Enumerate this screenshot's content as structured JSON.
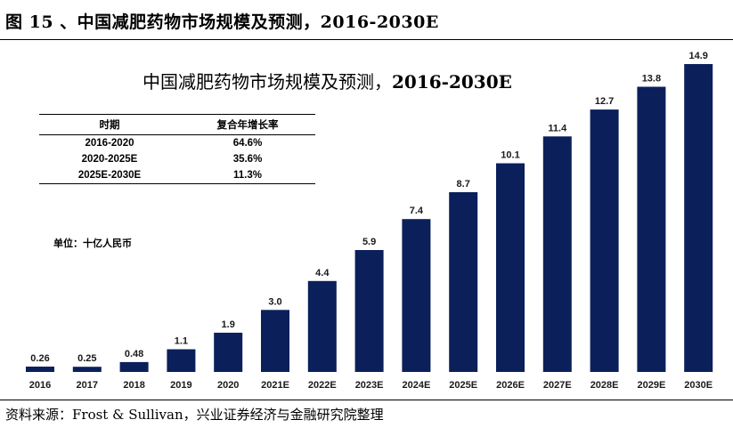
{
  "heading": "图 15 、中国减肥药物市场规模及预测，2016-2030E",
  "chart_title": {
    "prefix": "中国减肥药物市场规模及预测，",
    "years": "2016-2030E"
  },
  "cagr_table": {
    "headers": [
      "时期",
      "复合年增长率"
    ],
    "rows": [
      [
        "2016-2020",
        "64.6%"
      ],
      [
        "2020-2025E",
        "35.6%"
      ],
      [
        "2025E-2030E",
        "11.3%"
      ]
    ]
  },
  "unit_label": "单位：十亿人民币",
  "source": "资料来源：Frost & Sullivan，兴业证券经济与金融研究院整理",
  "colors": {
    "bar": "#0b1f5b"
  },
  "chart_data": {
    "type": "bar",
    "title": "中国减肥药物市场规模及预测，2016-2030E",
    "ylabel": "单位：十亿人民币",
    "categories": [
      "2016",
      "2017",
      "2018",
      "2019",
      "2020",
      "2021E",
      "2022E",
      "2023E",
      "2024E",
      "2025E",
      "2026E",
      "2027E",
      "2028E",
      "2029E",
      "2030E"
    ],
    "values": [
      0.26,
      0.25,
      0.48,
      1.1,
      1.9,
      3.0,
      4.4,
      5.9,
      7.4,
      8.7,
      10.1,
      11.4,
      12.7,
      13.8,
      14.9
    ],
    "value_labels": [
      "0.26",
      "0.25",
      "0.48",
      "1.1",
      "1.9",
      "3.0",
      "4.4",
      "5.9",
      "7.4",
      "8.7",
      "10.1",
      "11.4",
      "12.7",
      "13.8",
      "14.9"
    ],
    "ylim": [
      0,
      14.9
    ],
    "grid": false,
    "legend": "none"
  }
}
